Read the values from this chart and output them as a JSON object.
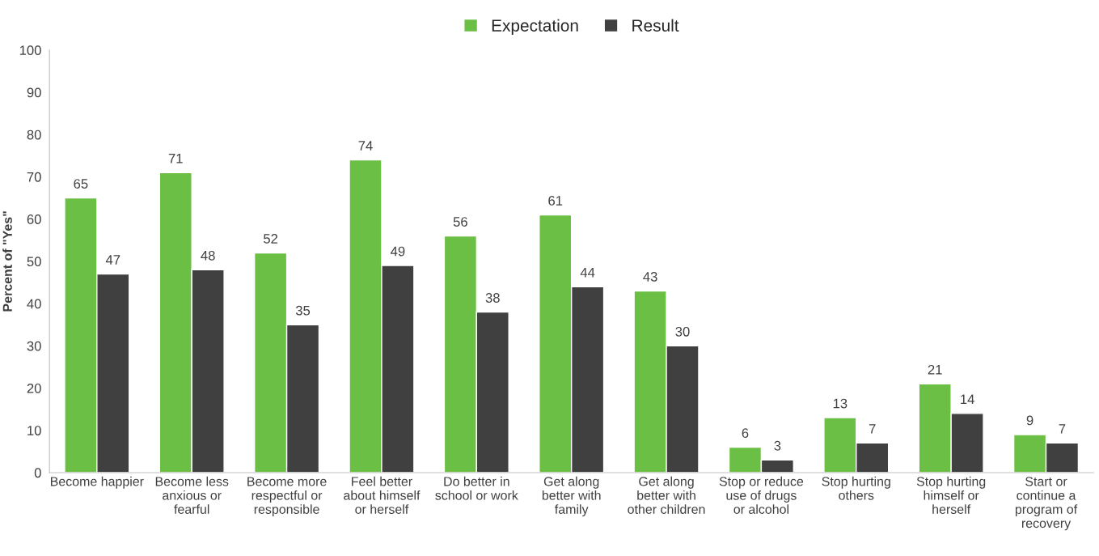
{
  "chart_data": {
    "type": "bar",
    "ylabel": "Percent of \"Yes\"",
    "categories": [
      "Become happier",
      "Become less anxious or fearful",
      "Become more respectful or responsible",
      "Feel better about himself or herself",
      "Do better in school or work",
      "Get along better with family",
      "Get along better with other children",
      "Stop or reduce use of drugs or alcohol",
      "Stop hurting others",
      "Stop hurting himself or herself",
      "Start or continue a program of recovery"
    ],
    "series": [
      {
        "name": "Expectation",
        "color": "#6cbf45",
        "values": [
          65,
          71,
          52,
          74,
          56,
          61,
          43,
          6,
          13,
          21,
          9
        ]
      },
      {
        "name": "Result",
        "color": "#404040",
        "values": [
          47,
          48,
          35,
          49,
          38,
          44,
          30,
          3,
          7,
          14,
          7
        ]
      }
    ],
    "ylim": [
      0,
      100
    ],
    "yticks": [
      0,
      10,
      20,
      30,
      40,
      50,
      60,
      70,
      80,
      90,
      100
    ],
    "data_labels": true,
    "grid": false,
    "legend": "top"
  }
}
